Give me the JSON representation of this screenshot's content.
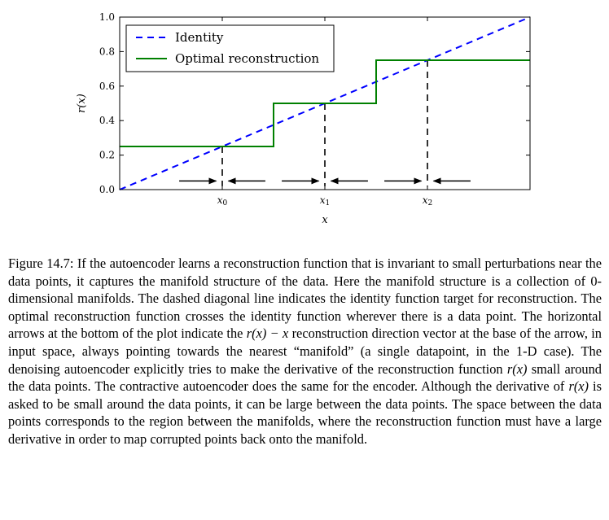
{
  "chart_data": {
    "type": "line",
    "xlabel": "x",
    "ylabel": "r(x)",
    "xlim": [
      0,
      1
    ],
    "ylim": [
      0,
      1
    ],
    "y_ticks": [
      "0.0",
      "0.2",
      "0.4",
      "0.6",
      "0.8",
      "1.0"
    ],
    "y_tick_values": [
      0,
      0.2,
      0.4,
      0.6,
      0.8,
      1.0
    ],
    "x_tick_values": [
      0.25,
      0.5,
      0.75
    ],
    "x_ticks": [
      "x0",
      "x1",
      "x2"
    ],
    "legend_position": "top-left",
    "series": [
      {
        "name": "Identity",
        "style": "dashed",
        "color": "#0000ff",
        "x": [
          0,
          1
        ],
        "y": [
          0,
          1
        ]
      },
      {
        "name": "Optimal reconstruction",
        "style": "solid",
        "color": "#008000",
        "x": [
          0,
          0.375,
          0.375,
          0.625,
          0.625,
          1
        ],
        "y": [
          0.25,
          0.25,
          0.5,
          0.5,
          0.75,
          0.75
        ]
      }
    ],
    "data_points": [
      0.25,
      0.5,
      0.75
    ],
    "arrows_y": 0.05,
    "arrows": [
      {
        "from": 0.145,
        "to": 0.235
      },
      {
        "from": 0.355,
        "to": 0.265
      },
      {
        "from": 0.395,
        "to": 0.485
      },
      {
        "from": 0.605,
        "to": 0.515
      },
      {
        "from": 0.645,
        "to": 0.735
      },
      {
        "from": 0.855,
        "to": 0.765
      }
    ]
  },
  "caption": {
    "label": "Figure 14.7:",
    "p1": " If the autoencoder learns a reconstruction function that is invariant to small perturbations near the data points, it captures the manifold structure of the data. Here the manifold structure is a collection of 0-dimensional manifolds. The dashed diagonal line indicates the identity function target for reconstruction. The optimal reconstruction function crosses the identity function wherever there is a data point. The horizontal arrows at the bottom of the plot indicate the ",
    "m1": "r(x) − x",
    "p2": " reconstruction direction vector at the base of the arrow, in input space, always pointing towards the nearest “manifold” (a single datapoint, in the 1-D case). The denoising autoencoder explicitly tries to make the derivative of the reconstruction function ",
    "m2": "r(x)",
    "p3": " small around the data points. The contractive autoencoder does the same for the encoder. Although the derivative of ",
    "m3": "r(x)",
    "p4": " is asked to be small around the data points, it can be large between the data points. The space between the data points corresponds to the region between the manifolds, where the reconstruction function must have a large derivative in order to map corrupted points back onto the manifold."
  }
}
